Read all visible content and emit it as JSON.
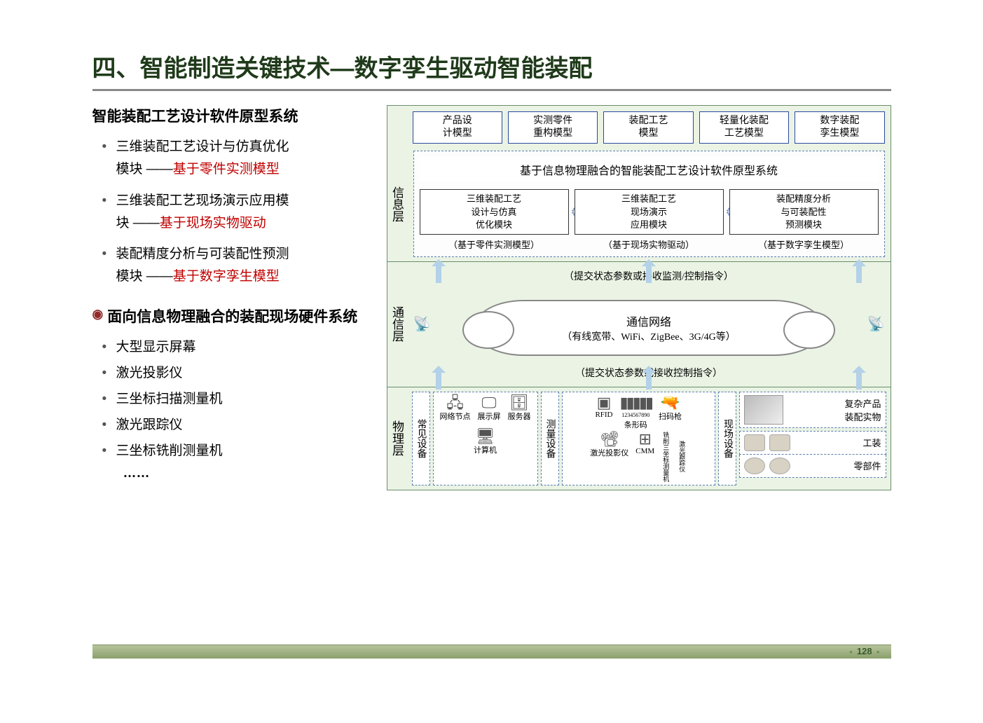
{
  "title": "四、智能制造关键技术—数字孪生驱动智能装配",
  "left": {
    "section1_title": "智能装配工艺设计软件原型系统",
    "b1_line1": "三维装配工艺设计与仿真优化",
    "b1_line2a": "模块 ——",
    "b1_line2b": "基于零件实测模型",
    "b2_line1": "三维装配工艺现场演示应用模",
    "b2_line2a": "块 ——",
    "b2_line2b": "基于现场实物驱动",
    "b3_line1": "装配精度分析与可装配性预测",
    "b3_line2a": "模块 ——",
    "b3_line2b": "基于数字孪生模型",
    "section2_title": "面向信息物理融合的装配现场硬件系统",
    "sub": [
      "大型显示屏幕",
      "激光投影仪",
      "三坐标扫描测量机",
      "激光跟踪仪",
      "三坐标铣削测量机"
    ],
    "ellipsis": "……"
  },
  "diagram": {
    "top_boxes": [
      "产品设\n计模型",
      "实测零件\n重构模型",
      "装配工艺\n模型",
      "轻量化装配\n工艺模型",
      "数字装配\n孪生模型"
    ],
    "info_layer_label": "信息层",
    "info_title": "基于信息物理融合的智能装配工艺设计软件原型系统",
    "modules": [
      {
        "title": "三维装配工艺\n设计与仿真\n优化模块",
        "note": "（基于零件实测模型）"
      },
      {
        "title": "三维装配工艺\n现场演示\n应用模块",
        "note": "（基于现场实物驱动）"
      },
      {
        "title": "装配精度分析\n与可装配性\n预测模块",
        "note": "（基于数字孪生模型）"
      }
    ],
    "comm_layer_label": "通信层",
    "arrow_up_label": "（提交状态参数或接收监测/控制指令）",
    "cloud_title": "通信网络",
    "cloud_sub": "（有线宽带、WiFi、ZigBee、3G/4G等）",
    "arrow_dn_label": "（提交状态参数或接收控制指令）",
    "phys_layer_label": "物理层",
    "phys_groups": {
      "g1_label": "常见设备",
      "g1_items": [
        {
          "ic": "🖧",
          "t": "网络节点"
        },
        {
          "ic": "🖵",
          "t": "展示屏"
        },
        {
          "ic": "🗄",
          "t": "服务器"
        },
        {
          "ic": "🖥",
          "t": "计算机"
        }
      ],
      "g2_label": "测量设备",
      "g2_row1": [
        {
          "ic": "📶",
          "t": "RFID"
        },
        {
          "ic": "▮▮▮",
          "t": "条形码"
        },
        {
          "ic": "🔫",
          "t": "扫码枪"
        }
      ],
      "g2_row1_sub": "1234567890",
      "g2_row2": [
        {
          "ic": "📽",
          "t": "激光投影仪"
        },
        {
          "ic": "⊞",
          "t": "CMM"
        },
        {
          "ic": "📐",
          "t": "铣削三坐标测量机"
        },
        {
          "ic": "📍",
          "t": "激光跟踪仪"
        }
      ],
      "g3_label": "现场设备",
      "g3_r1": "复杂产品\n装配实物",
      "g3_r2": "工装",
      "g3_r3": "零部件"
    }
  },
  "page_number": "128",
  "colors": {
    "title": "#1f3a1a",
    "red": "#c00000",
    "diagram_bg": "#eaf3e4",
    "dashed": "#5a7fae",
    "model_border": "#2a4aa0",
    "footer_grad_top": "#b7c49b",
    "footer_grad_bot": "#8aa06c"
  }
}
